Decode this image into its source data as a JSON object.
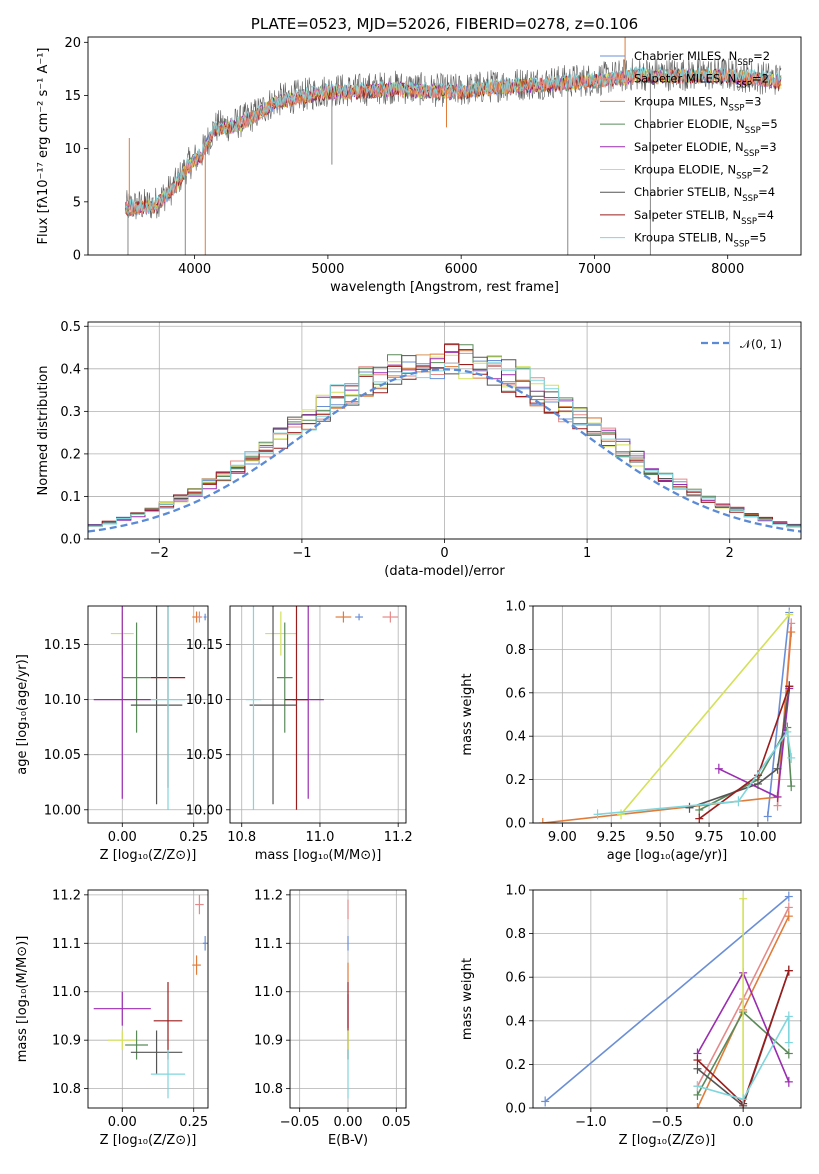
{
  "chart_data": [
    {
      "id": "spectrum",
      "type": "line",
      "title": "PLATE=0523, MJD=52026, FIBERID=0278, z=0.106",
      "xlabel": "wavelength [Angstrom, rest frame]",
      "ylabel": "Flux [fλ10⁻¹⁷ erg cm⁻² s⁻¹ A⁻¹]",
      "xlim": [
        3200,
        8550
      ],
      "ylim": [
        0,
        20.5
      ],
      "xticks": [
        4000,
        5000,
        6000,
        7000,
        8000
      ],
      "yticks": [
        0,
        5,
        10,
        15,
        20
      ],
      "data_x_range": [
        3480,
        8400
      ],
      "grid": false,
      "legend_position": "right",
      "legend": [
        {
          "name": "Chabrier MILES, N",
          "sub": "SSP",
          "val": "=2",
          "color": "#6b8fd6"
        },
        {
          "name": "Salpeter MILES, N",
          "sub": "SSP",
          "val": "=2",
          "color": "#e58a8a"
        },
        {
          "name": "Kroupa MILES, N",
          "sub": "SSP",
          "val": "=3",
          "color": "#e07b39"
        },
        {
          "name": "Chabrier ELODIE, N",
          "sub": "SSP",
          "val": "=5",
          "color": "#5a8a5a"
        },
        {
          "name": "Salpeter ELODIE, N",
          "sub": "SSP",
          "val": "=3",
          "color": "#9a2cb0"
        },
        {
          "name": "Kroupa ELODIE, N",
          "sub": "SSP",
          "val": "=2",
          "color": "#d4e157"
        },
        {
          "name": "Chabrier STELIB, N",
          "sub": "SSP",
          "val": "=4",
          "color": "#555555"
        },
        {
          "name": "Salpeter STELIB, N",
          "sub": "SSP",
          "val": "=4",
          "color": "#9b1c1c"
        },
        {
          "name": "Kroupa STELIB, N",
          "sub": "SSP",
          "val": "=5",
          "color": "#7fd6dd"
        }
      ],
      "continuum": [
        [
          3480,
          4.5
        ],
        [
          3700,
          4.8
        ],
        [
          3850,
          6.5
        ],
        [
          3950,
          8.5
        ],
        [
          4050,
          9.5
        ],
        [
          4150,
          12
        ],
        [
          4300,
          12.3
        ],
        [
          4450,
          13.2
        ],
        [
          4600,
          14.5
        ],
        [
          4800,
          15
        ],
        [
          5000,
          15.5
        ],
        [
          5200,
          15.5
        ],
        [
          5500,
          15.8
        ],
        [
          5800,
          15.5
        ],
        [
          6000,
          15.5
        ],
        [
          6300,
          16
        ],
        [
          6600,
          16.2
        ],
        [
          7000,
          16.5
        ],
        [
          7300,
          17
        ],
        [
          7600,
          17
        ],
        [
          8000,
          17
        ],
        [
          8400,
          16.5
        ]
      ],
      "spikes": [
        {
          "x": 3500,
          "y": 0
        },
        {
          "x": 3510,
          "y": 11
        },
        {
          "x": 3930,
          "y": 0
        },
        {
          "x": 4080,
          "y": 0
        },
        {
          "x": 5030,
          "y": 8.5
        },
        {
          "x": 5890,
          "y": 12
        },
        {
          "x": 6800,
          "y": 0
        },
        {
          "x": 7230,
          "y": 21
        },
        {
          "x": 7420,
          "y": 0
        }
      ]
    },
    {
      "id": "residuals",
      "type": "step",
      "xlabel": "(data-model)/error",
      "ylabel": "Normed distribution",
      "xlim": [
        -2.5,
        2.5
      ],
      "ylim": [
        0,
        0.51
      ],
      "xticks": [
        -2,
        -1,
        0,
        1,
        2
      ],
      "yticks": [
        0.0,
        0.1,
        0.2,
        0.3,
        0.4,
        0.5
      ],
      "grid": true,
      "legend_label": "𝒩(0, 1)",
      "legend_position": "top-right",
      "bin_width": 0.1
    },
    {
      "id": "age-vs-Z",
      "type": "errorbar",
      "xlabel": "Z [log₁₀(Z/Z⊙)]",
      "ylabel": "age  [log₁₀(age/yr)]",
      "xlim": [
        -0.12,
        0.3
      ],
      "ylim": [
        9.988,
        10.185
      ],
      "xticks": [
        0.0,
        0.25
      ],
      "yticks": [
        10.0,
        10.05,
        10.1,
        10.15
      ],
      "grid": true,
      "points": [
        {
          "x": 0.0,
          "y": 10.16,
          "xe": 0.04,
          "ye": 0.02,
          "c": "#d4e157"
        },
        {
          "x": 0.05,
          "y": 10.12,
          "xe": 0.05,
          "ye": 0.05,
          "c": "#5a8a5a"
        },
        {
          "x": 0.0,
          "y": 10.1,
          "xe": 0.1,
          "ye": 0.09,
          "c": "#9a2cb0"
        },
        {
          "x": 0.16,
          "y": 10.12,
          "xe": 0.06,
          "ye": 0.1,
          "c": "#9b1c1c"
        },
        {
          "x": 0.12,
          "y": 10.095,
          "xe": 0.09,
          "ye": 0.09,
          "c": "#555555"
        },
        {
          "x": 0.16,
          "y": 10.1,
          "xe": 0.06,
          "ye": 0.1,
          "c": "#7fd6dd"
        },
        {
          "x": 0.26,
          "y": 10.175,
          "xe": 0.015,
          "ye": 0.005,
          "c": "#e07b39"
        },
        {
          "x": 0.27,
          "y": 10.175,
          "xe": 0.01,
          "ye": 0.005,
          "c": "#e58a8a"
        },
        {
          "x": 0.29,
          "y": 10.175,
          "xe": 0.005,
          "ye": 0.003,
          "c": "#6b8fd6"
        }
      ]
    },
    {
      "id": "age-vs-mass",
      "type": "errorbar",
      "xlabel": "mass [log₁₀(M/M⊙)]",
      "ylabel": "",
      "xlim": [
        10.77,
        11.22
      ],
      "ylim": [
        9.988,
        10.185
      ],
      "xticks": [
        10.8,
        11.0,
        11.2
      ],
      "yticks": [
        10.0,
        10.05,
        10.1,
        10.15
      ],
      "grid": true,
      "points": [
        {
          "x": 10.9,
          "y": 10.16,
          "xe": 0.04,
          "ye": 0.02,
          "c": "#d4e157"
        },
        {
          "x": 10.91,
          "y": 10.12,
          "xe": 0.02,
          "ye": 0.05,
          "c": "#5a8a5a"
        },
        {
          "x": 10.97,
          "y": 10.1,
          "xe": 0.04,
          "ye": 0.09,
          "c": "#9a2cb0"
        },
        {
          "x": 10.94,
          "y": 10.1,
          "xe": 0.03,
          "ye": 0.1,
          "c": "#9b1c1c"
        },
        {
          "x": 10.88,
          "y": 10.095,
          "xe": 0.06,
          "ye": 0.09,
          "c": "#555555"
        },
        {
          "x": 10.83,
          "y": 10.1,
          "xe": 0.02,
          "ye": 0.1,
          "c": "#7fd6dd"
        },
        {
          "x": 11.06,
          "y": 10.175,
          "xe": 0.02,
          "ye": 0.005,
          "c": "#e07b39"
        },
        {
          "x": 11.18,
          "y": 10.175,
          "xe": 0.02,
          "ye": 0.005,
          "c": "#e58a8a"
        },
        {
          "x": 11.1,
          "y": 10.175,
          "xe": 0.01,
          "ye": 0.003,
          "c": "#6b8fd6"
        }
      ]
    },
    {
      "id": "weight-vs-age",
      "type": "line",
      "xlabel": "age  [log₁₀(age/yr)]",
      "ylabel": "mass weight",
      "xlim": [
        8.85,
        10.22
      ],
      "ylim": [
        0,
        1.0
      ],
      "xticks": [
        9.0,
        9.25,
        9.5,
        9.75,
        10.0
      ],
      "yticks": [
        0.0,
        0.2,
        0.4,
        0.6,
        0.8,
        1.0
      ],
      "grid": true,
      "series": [
        {
          "c": "#6b8fd6",
          "pts": [
            [
              10.05,
              0.03
            ],
            [
              10.16,
              0.97
            ]
          ]
        },
        {
          "c": "#e58a8a",
          "pts": [
            [
              10.1,
              0.08
            ],
            [
              10.17,
              0.92
            ]
          ]
        },
        {
          "c": "#e07b39",
          "pts": [
            [
              8.9,
              0.0
            ],
            [
              10.1,
              0.12
            ],
            [
              10.17,
              0.88
            ]
          ]
        },
        {
          "c": "#5a8a5a",
          "pts": [
            [
              9.7,
              0.06
            ],
            [
              10.0,
              0.2
            ],
            [
              10.15,
              0.44
            ],
            [
              10.17,
              0.17
            ]
          ]
        },
        {
          "c": "#9a2cb0",
          "pts": [
            [
              9.8,
              0.25
            ],
            [
              10.1,
              0.12
            ],
            [
              10.16,
              0.62
            ]
          ]
        },
        {
          "c": "#d4e157",
          "pts": [
            [
              9.3,
              0.04
            ],
            [
              10.16,
              0.96
            ]
          ]
        },
        {
          "c": "#555555",
          "pts": [
            [
              9.65,
              0.07
            ],
            [
              10.0,
              0.18
            ],
            [
              10.1,
              0.25
            ],
            [
              10.16,
              0.63
            ]
          ]
        },
        {
          "c": "#9b1c1c",
          "pts": [
            [
              9.7,
              0.02
            ],
            [
              10.0,
              0.22
            ],
            [
              10.16,
              0.63
            ]
          ]
        },
        {
          "c": "#7fd6dd",
          "pts": [
            [
              9.18,
              0.04
            ],
            [
              9.9,
              0.1
            ],
            [
              10.15,
              0.42
            ],
            [
              10.17,
              0.3
            ]
          ]
        }
      ]
    },
    {
      "id": "mass-vs-Z",
      "type": "errorbar",
      "xlabel": "Z [log₁₀(Z/Z⊙)]",
      "ylabel": "mass [log₁₀(M/M⊙)]",
      "xlim": [
        -0.12,
        0.3
      ],
      "ylim": [
        10.76,
        11.21
      ],
      "xticks": [
        0.0,
        0.25
      ],
      "yticks": [
        10.8,
        10.9,
        11.0,
        11.1,
        11.2
      ],
      "grid": true,
      "points": [
        {
          "x": 0.0,
          "y": 10.9,
          "xe": 0.05,
          "ye": 0.02,
          "c": "#d4e157"
        },
        {
          "x": 0.05,
          "y": 10.89,
          "xe": 0.04,
          "ye": 0.03,
          "c": "#5a8a5a"
        },
        {
          "x": 0.0,
          "y": 10.965,
          "xe": 0.1,
          "ye": 0.035,
          "c": "#9a2cb0"
        },
        {
          "x": 0.16,
          "y": 10.94,
          "xe": 0.05,
          "ye": 0.08,
          "c": "#9b1c1c"
        },
        {
          "x": 0.12,
          "y": 10.875,
          "xe": 0.09,
          "ye": 0.045,
          "c": "#555555"
        },
        {
          "x": 0.16,
          "y": 10.83,
          "xe": 0.06,
          "ye": 0.05,
          "c": "#7fd6dd"
        },
        {
          "x": 0.26,
          "y": 11.055,
          "xe": 0.015,
          "ye": 0.02,
          "c": "#e07b39"
        },
        {
          "x": 0.27,
          "y": 11.18,
          "xe": 0.015,
          "ye": 0.02,
          "c": "#e58a8a"
        },
        {
          "x": 0.29,
          "y": 11.1,
          "xe": 0.008,
          "ye": 0.015,
          "c": "#6b8fd6"
        }
      ]
    },
    {
      "id": "mass-vs-ebv",
      "type": "errorbar",
      "xlabel": "E(B-V)",
      "ylabel": "",
      "xlim": [
        -0.06,
        0.06
      ],
      "ylim": [
        10.76,
        11.21
      ],
      "xticks": [
        -0.05,
        0.0,
        0.05
      ],
      "yticks": [
        10.8,
        10.9,
        11.0,
        11.1,
        11.2
      ],
      "grid": true,
      "points": [
        {
          "x": 0.0,
          "y": 11.17,
          "xe": 0,
          "ye": 0.02,
          "c": "#e58a8a"
        },
        {
          "x": 0.0,
          "y": 11.1,
          "xe": 0,
          "ye": 0.015,
          "c": "#6b8fd6"
        },
        {
          "x": 0.0,
          "y": 11.04,
          "xe": 0,
          "ye": 0.02,
          "c": "#e07b39"
        },
        {
          "x": 0.0,
          "y": 10.96,
          "xe": 0,
          "ye": 0.035,
          "c": "#9a2cb0"
        },
        {
          "x": 0.0,
          "y": 10.94,
          "xe": 0,
          "ye": 0.08,
          "c": "#9b1c1c"
        },
        {
          "x": 0.0,
          "y": 10.89,
          "xe": 0,
          "ye": 0.03,
          "c": "#5a8a5a"
        },
        {
          "x": 0.0,
          "y": 10.9,
          "xe": 0,
          "ye": 0.02,
          "c": "#d4e157"
        },
        {
          "x": 0.0,
          "y": 10.83,
          "xe": 0,
          "ye": 0.05,
          "c": "#7fd6dd"
        }
      ]
    },
    {
      "id": "weight-vs-Z",
      "type": "line",
      "xlabel": "Z [log₁₀(Z/Z⊙)]",
      "ylabel": "mass weight",
      "xlim": [
        -1.38,
        0.38
      ],
      "ylim": [
        0,
        1.0
      ],
      "xticks": [
        -1.0,
        -0.5,
        0.0
      ],
      "yticks": [
        0.0,
        0.2,
        0.4,
        0.6,
        0.8,
        1.0
      ],
      "grid": true,
      "series": [
        {
          "c": "#6b8fd6",
          "pts": [
            [
              -1.3,
              0.03
            ],
            [
              0.3,
              0.97
            ]
          ]
        },
        {
          "c": "#e58a8a",
          "pts": [
            [
              -0.3,
              0.1
            ],
            [
              0.0,
              0.5
            ],
            [
              0.3,
              0.92
            ]
          ]
        },
        {
          "c": "#e07b39",
          "pts": [
            [
              -0.3,
              0.0
            ],
            [
              0.0,
              0.45
            ],
            [
              0.3,
              0.88
            ]
          ]
        },
        {
          "c": "#5a8a5a",
          "pts": [
            [
              -0.3,
              0.06
            ],
            [
              0.0,
              0.44
            ],
            [
              0.3,
              0.25
            ]
          ]
        },
        {
          "c": "#9a2cb0",
          "pts": [
            [
              -0.3,
              0.25
            ],
            [
              0.0,
              0.62
            ],
            [
              0.3,
              0.12
            ]
          ]
        },
        {
          "c": "#d4e157",
          "pts": [
            [
              0.0,
              0.96
            ],
            [
              0.0,
              0.04
            ]
          ]
        },
        {
          "c": "#555555",
          "pts": [
            [
              -0.3,
              0.18
            ],
            [
              0.0,
              0.01
            ],
            [
              0.3,
              0.63
            ]
          ]
        },
        {
          "c": "#9b1c1c",
          "pts": [
            [
              -0.3,
              0.22
            ],
            [
              0.0,
              0.02
            ],
            [
              0.3,
              0.63
            ]
          ]
        },
        {
          "c": "#7fd6dd",
          "pts": [
            [
              -0.3,
              0.1
            ],
            [
              0.0,
              0.04
            ],
            [
              0.3,
              0.42
            ],
            [
              0.3,
              0.3
            ]
          ]
        }
      ]
    }
  ]
}
